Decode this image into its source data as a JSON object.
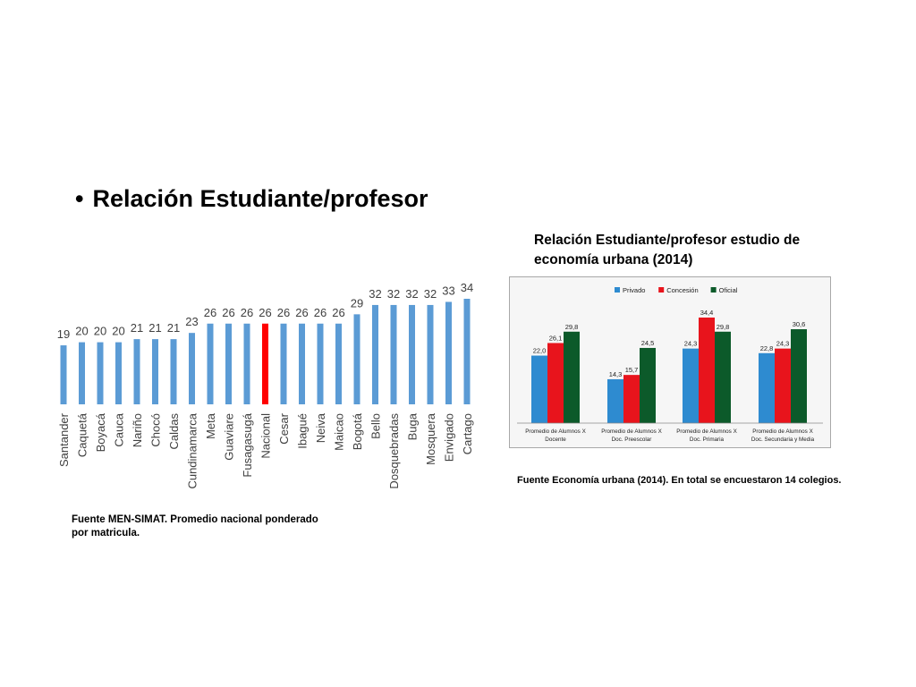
{
  "slide": {
    "bullet": "•",
    "title": "Relación Estudiante/profesor",
    "note_left": "Fuente MEN-SIMAT. Promedio nacional ponderado por matricula.",
    "chart2_title": "Relación Estudiante/profesor estudio de economía urbana (2014)",
    "note_right": "Fuente Economía urbana (2014).  En total se encuestaron 14 colegios."
  },
  "chart_data": [
    {
      "type": "bar",
      "categories": [
        "Santander",
        "Caquetá",
        "Boyacá",
        "Cauca",
        "Nariño",
        "Chocó",
        "Caldas",
        "Cundinamarca",
        "Meta",
        "Guaviare",
        "Fusagasugá",
        "Nacional",
        "Cesar",
        "Ibagué",
        "Neiva",
        "Maicao",
        "Bogotá",
        "Bello",
        "Dosquebradas",
        "Buga",
        "Mosquera",
        "Envigado",
        "Cartago"
      ],
      "values": [
        19,
        20,
        20,
        20,
        21,
        21,
        21,
        23,
        26,
        26,
        26,
        26,
        26,
        26,
        26,
        26,
        29,
        32,
        32,
        32,
        32,
        33,
        34
      ],
      "data_labels": [
        "19",
        "20",
        "20",
        "20",
        "21",
        "21",
        "21",
        "23",
        "26",
        "26",
        "26",
        "26",
        "26",
        "26",
        "26",
        "26",
        "29",
        "32",
        "32",
        "32",
        "32",
        "33",
        "34"
      ],
      "highlight_category": "Nacional",
      "colors": {
        "bar": "#5b9bd5",
        "highlight": "#ff0000"
      },
      "ylim": [
        0,
        36
      ],
      "grid": false,
      "legend": "none"
    },
    {
      "type": "bar",
      "categories": [
        "Promedio de Alumnos X Docente",
        "Promedio de Alumnos X Doc. Preescolar",
        "Promedio de Alumnos X Doc. Primaria",
        "Promedio de Alumnos X Doc. Secundaria y Media"
      ],
      "category_lines": [
        [
          "Promedio de Alumnos X",
          "Docente"
        ],
        [
          "Promedio de Alumnos X",
          "Doc. Preescolar"
        ],
        [
          "Promedio de Alumnos X",
          "Doc. Primaria"
        ],
        [
          "Promedio de Alumnos X",
          "Doc. Secundaria y Media"
        ]
      ],
      "series": [
        {
          "name": "Privado",
          "values": [
            22.0,
            14.3,
            24.3,
            22.8
          ],
          "labels": [
            "22,0",
            "14,3",
            "24,3",
            "22,8"
          ],
          "color": "#2e8bd0"
        },
        {
          "name": "Concesión",
          "values": [
            26.1,
            15.7,
            34.4,
            24.3
          ],
          "labels": [
            "26,1",
            "15,7",
            "34,4",
            "24,3"
          ],
          "color": "#e8141c"
        },
        {
          "name": "Oficial",
          "values": [
            29.8,
            24.5,
            29.8,
            30.6
          ],
          "labels": [
            "29,8",
            "24,5",
            "29,8",
            "30,6"
          ],
          "color": "#0c5a2a"
        }
      ],
      "ylim": [
        0,
        36
      ],
      "grid": false,
      "legend": "top"
    }
  ]
}
